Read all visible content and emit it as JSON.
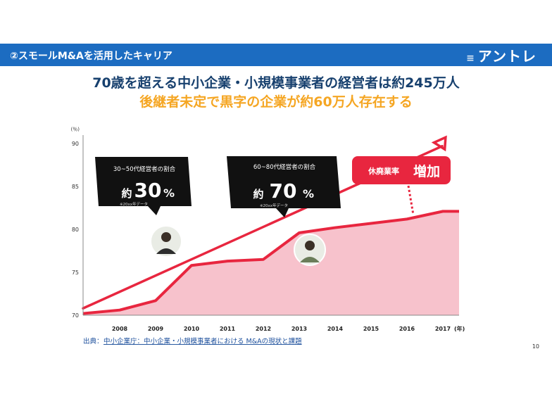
{
  "header": {
    "title": "②スモールM&Aを活用したキャリア",
    "brand": "アントレ"
  },
  "headline": {
    "line1": "70歳を超える中小企業・小規模事業者の経営者は約245万人",
    "line2": "後継者未定で黒字の企業が約60万人存在する"
  },
  "chart_data": {
    "type": "area",
    "categories": [
      "2008",
      "2009",
      "2010",
      "2011",
      "2012",
      "2013",
      "2014",
      "2015",
      "2016",
      "2017"
    ],
    "x_unit": "(年)",
    "y_unit": "(％)",
    "ylim": [
      70,
      90
    ],
    "y_ticks": [
      70,
      75,
      80,
      85,
      90
    ],
    "series": [
      {
        "name": "",
        "values": [
          70.6,
          71.7,
          75.8,
          76.3,
          76.5,
          79.6,
          80.2,
          80.7,
          81.2,
          82.1
        ]
      }
    ],
    "grid": false,
    "colors": {
      "area": "#f6b7c3",
      "line": "#e8263f",
      "arrow": "#e8263f"
    },
    "callouts": [
      {
        "label": "30~50代経営者の割合",
        "prefix": "約",
        "value": "30",
        "unit": "%",
        "note": "※20xx年データ"
      },
      {
        "label": "60~80代経営者の割合",
        "prefix": "約",
        "value": "70",
        "unit": "%",
        "note": "※20xx年データ"
      }
    ],
    "badge": {
      "text": "休廃業率",
      "emphasis": "増加"
    },
    "source": {
      "prefix": "出典：",
      "text": "中小企業庁：中小企業・小規模事業者における M&Aの現状と課題"
    }
  },
  "page_number": "10"
}
